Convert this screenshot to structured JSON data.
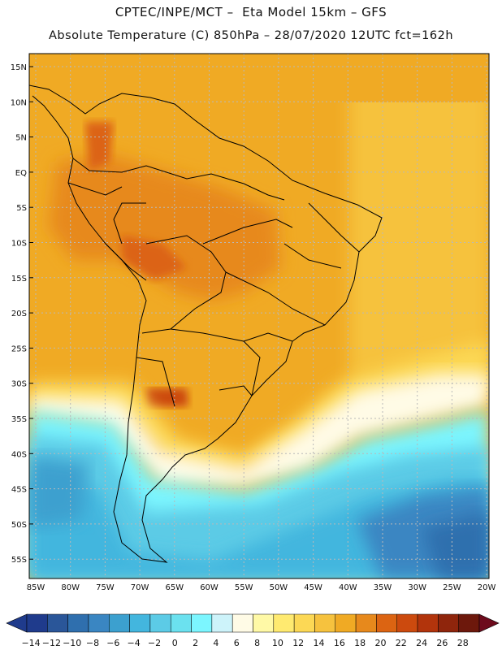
{
  "header": {
    "line1": "CPTEC/INPE/MCT –  Eta Model 15km – GFS",
    "line2": "Absolute Temperature (C) 850hPa – 28/07/2020 12UTC fct=162h"
  },
  "map": {
    "lat_labels": [
      "15N",
      "10N",
      "5N",
      "EQ",
      "5S",
      "10S",
      "15S",
      "20S",
      "25S",
      "30S",
      "35S",
      "40S",
      "45S",
      "50S",
      "55S"
    ],
    "lon_labels": [
      "85W",
      "80W",
      "75W",
      "70W",
      "65W",
      "60W",
      "55W",
      "50W",
      "45W",
      "40W",
      "35W",
      "30W",
      "25W",
      "20W"
    ],
    "grid": "dotted"
  },
  "colorbar": {
    "labels": [
      "-14",
      "-12",
      "-10",
      "-8",
      "-6",
      "-4",
      "-2",
      "0",
      "2",
      "4",
      "6",
      "8",
      "10",
      "12",
      "14",
      "16",
      "18",
      "20",
      "22",
      "24",
      "26",
      "28"
    ],
    "colors": [
      "#1f3b8c",
      "#2a5699",
      "#2f6fae",
      "#3a86c2",
      "#3ca0cf",
      "#43b6de",
      "#5ccbe6",
      "#6be1ef",
      "#7cf6ff",
      "#cdf3fa",
      "#fffbe6",
      "#fff9a6",
      "#ffea70",
      "#fcd855",
      "#f6c23e",
      "#f0aa24",
      "#e7891c",
      "#dc6412",
      "#cc4a0e",
      "#b2340c",
      "#8f250c",
      "#6d180c"
    ]
  }
}
